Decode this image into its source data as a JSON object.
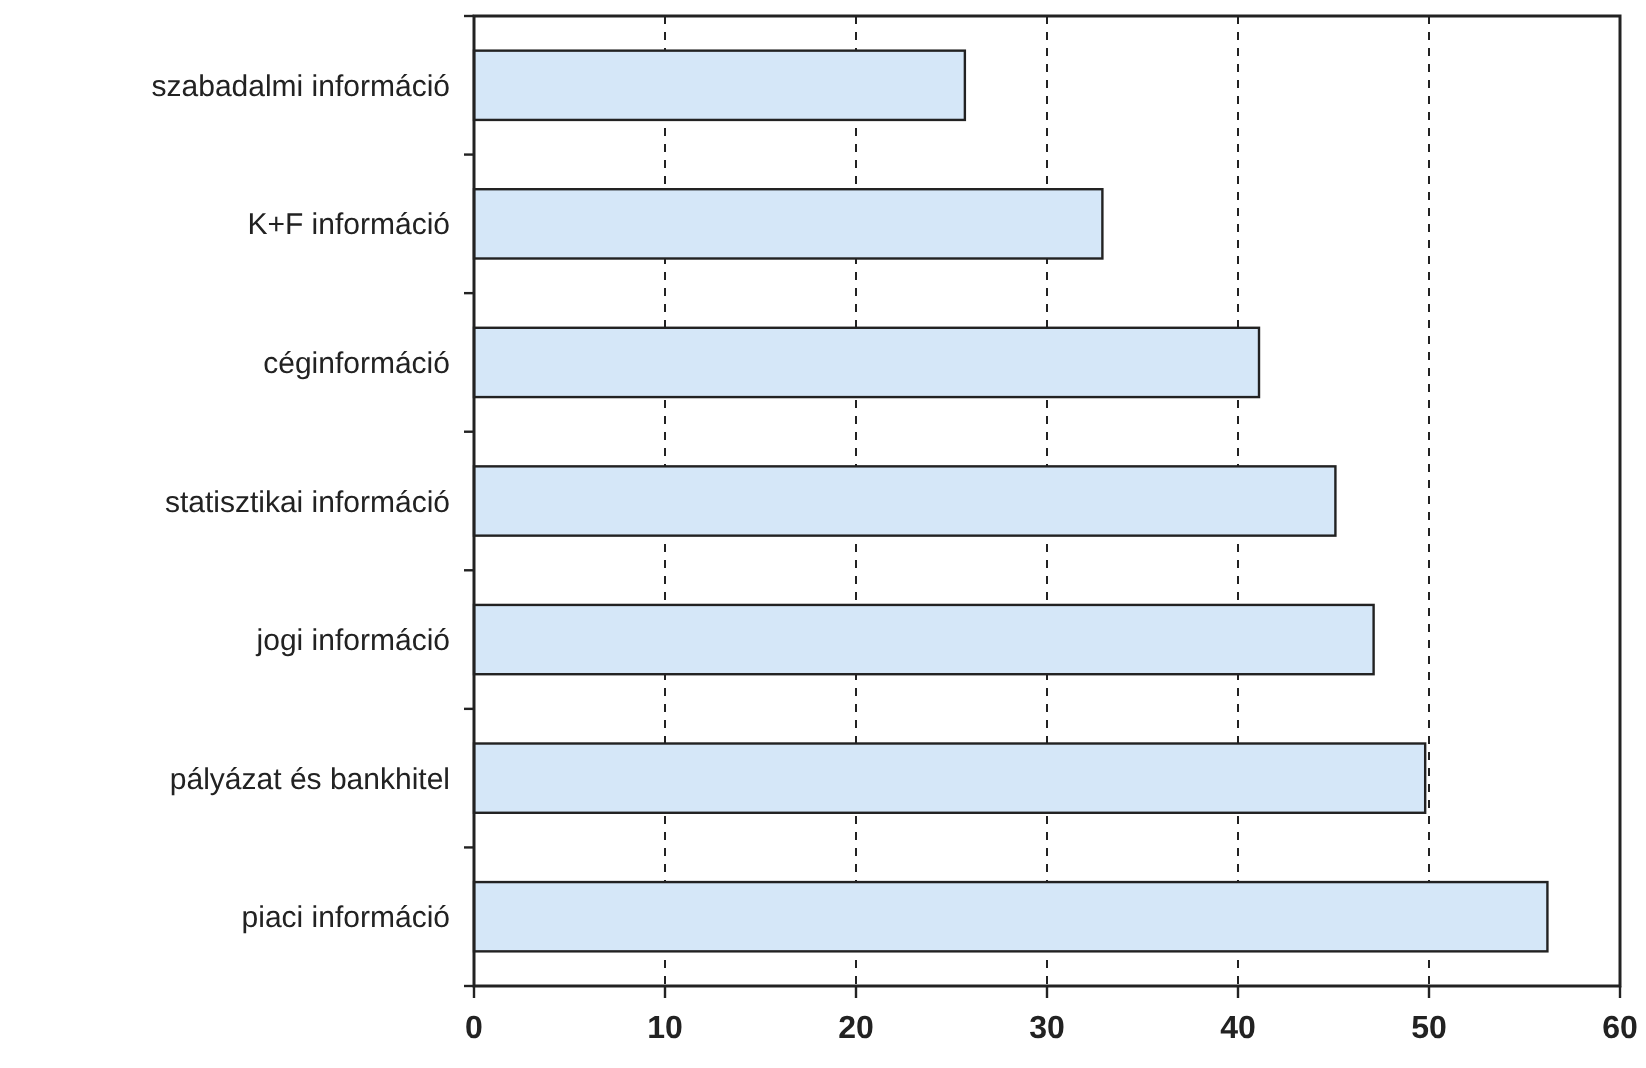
{
  "chart_data": {
    "type": "bar",
    "orientation": "horizontal",
    "categories": [
      "szabadalmi információ",
      "K+F információ",
      "céginformáció",
      "statisztikai információ",
      "jogi információ",
      "pályázat és bankhitel",
      "piaci információ"
    ],
    "values": [
      25.7,
      32.9,
      41.1,
      45.1,
      47.1,
      49.8,
      56.2
    ],
    "color": "#d5e7f8",
    "xlim": [
      0,
      60
    ],
    "xticks": [
      0,
      10,
      20,
      30,
      40,
      50,
      60
    ],
    "grid": "x"
  }
}
